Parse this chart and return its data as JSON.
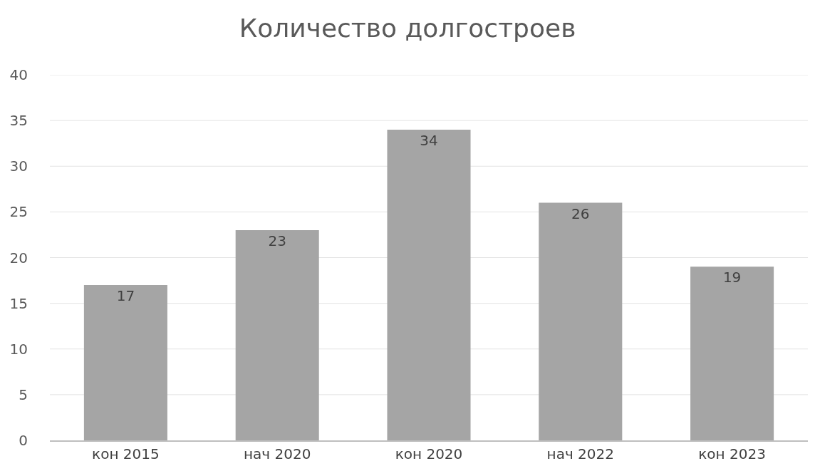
{
  "chart_data": {
    "type": "bar",
    "title": "Количество долгостроев",
    "categories": [
      "кон 2015",
      "нач 2020",
      "кон 2020",
      "нач 2022",
      "кон 2023"
    ],
    "values": [
      17,
      23,
      34,
      26,
      19
    ],
    "color": "#a5a5a5",
    "ylim": [
      0,
      40
    ],
    "yticks": [
      0,
      5,
      10,
      15,
      20,
      25,
      30,
      35,
      40
    ],
    "grid": "y",
    "data_labels": true
  }
}
